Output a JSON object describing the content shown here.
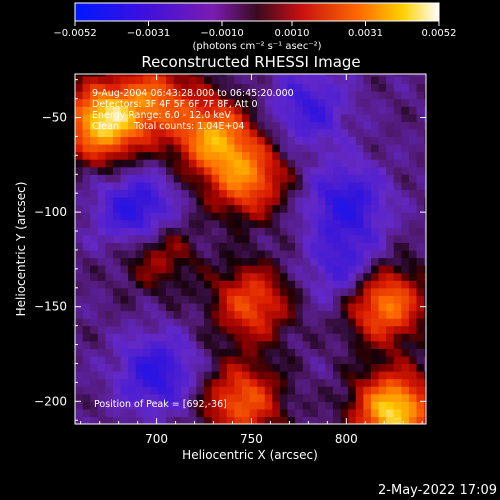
{
  "chart_data": {
    "type": "heatmap",
    "title": "Reconstructed RHESSI Image",
    "xlabel": "Heliocentric X (arcsec)",
    "ylabel": "Heliocentric Y (arcsec)",
    "xlim": [
      657,
      842
    ],
    "ylim": [
      -212,
      -27
    ],
    "xticks": [
      700,
      750,
      800
    ],
    "xtick_labels": [
      "700",
      "750",
      "800"
    ],
    "yticks": [
      -50,
      -100,
      -150,
      -200
    ],
    "ytick_labels": [
      "−50",
      "−100",
      "−150",
      "−200"
    ],
    "colorbar": {
      "min": -0.0052,
      "max": 0.0052,
      "ticks": [
        -0.0052,
        -0.0031,
        -0.001,
        0.001,
        0.0031,
        0.0052
      ],
      "tick_labels": [
        "−0.0052",
        "−0.0031",
        "−0.0010",
        "0.0010",
        "0.0031",
        "0.0052"
      ],
      "unit_label": "(photons cm⁻² s⁻¹ asec⁻²)",
      "colormap": "blue-purple-red-yellow-white"
    },
    "annotations": [
      "9-Aug-2004 06:43:28.000 to 06:45:20.000",
      "Detectors: 3F 4F 5F 6F 7F 8F, Att 0",
      "Energy Range: 6.0 - 12.0 keV",
      "Clean     Total counts: 1.04E+04"
    ],
    "peak_label": "Position of Peak = [692,-36]",
    "peak": [
      692,
      -36
    ],
    "bright_sources": [
      {
        "x": 672,
        "y": -52,
        "value": 0.0052
      },
      {
        "x": 730,
        "y": -60,
        "value": 0.004
      },
      {
        "x": 748,
        "y": -82,
        "value": 0.0035
      },
      {
        "x": 700,
        "y": -40,
        "value": 0.003
      },
      {
        "x": 820,
        "y": -148,
        "value": 0.004
      },
      {
        "x": 825,
        "y": -205,
        "value": 0.0052
      },
      {
        "x": 750,
        "y": -148,
        "value": 0.003
      },
      {
        "x": 745,
        "y": -200,
        "value": 0.0033
      },
      {
        "x": 700,
        "y": -120,
        "value": 0.002
      }
    ],
    "dark_sources": [
      {
        "x": 690,
        "y": -100,
        "value": -0.003
      },
      {
        "x": 800,
        "y": -95,
        "value": -0.0025
      },
      {
        "x": 780,
        "y": -45,
        "value": -0.002
      },
      {
        "x": 700,
        "y": -185,
        "value": -0.0025
      },
      {
        "x": 800,
        "y": -130,
        "value": -0.002
      }
    ]
  },
  "footer_timestamp": "2-May-2022 17:09"
}
